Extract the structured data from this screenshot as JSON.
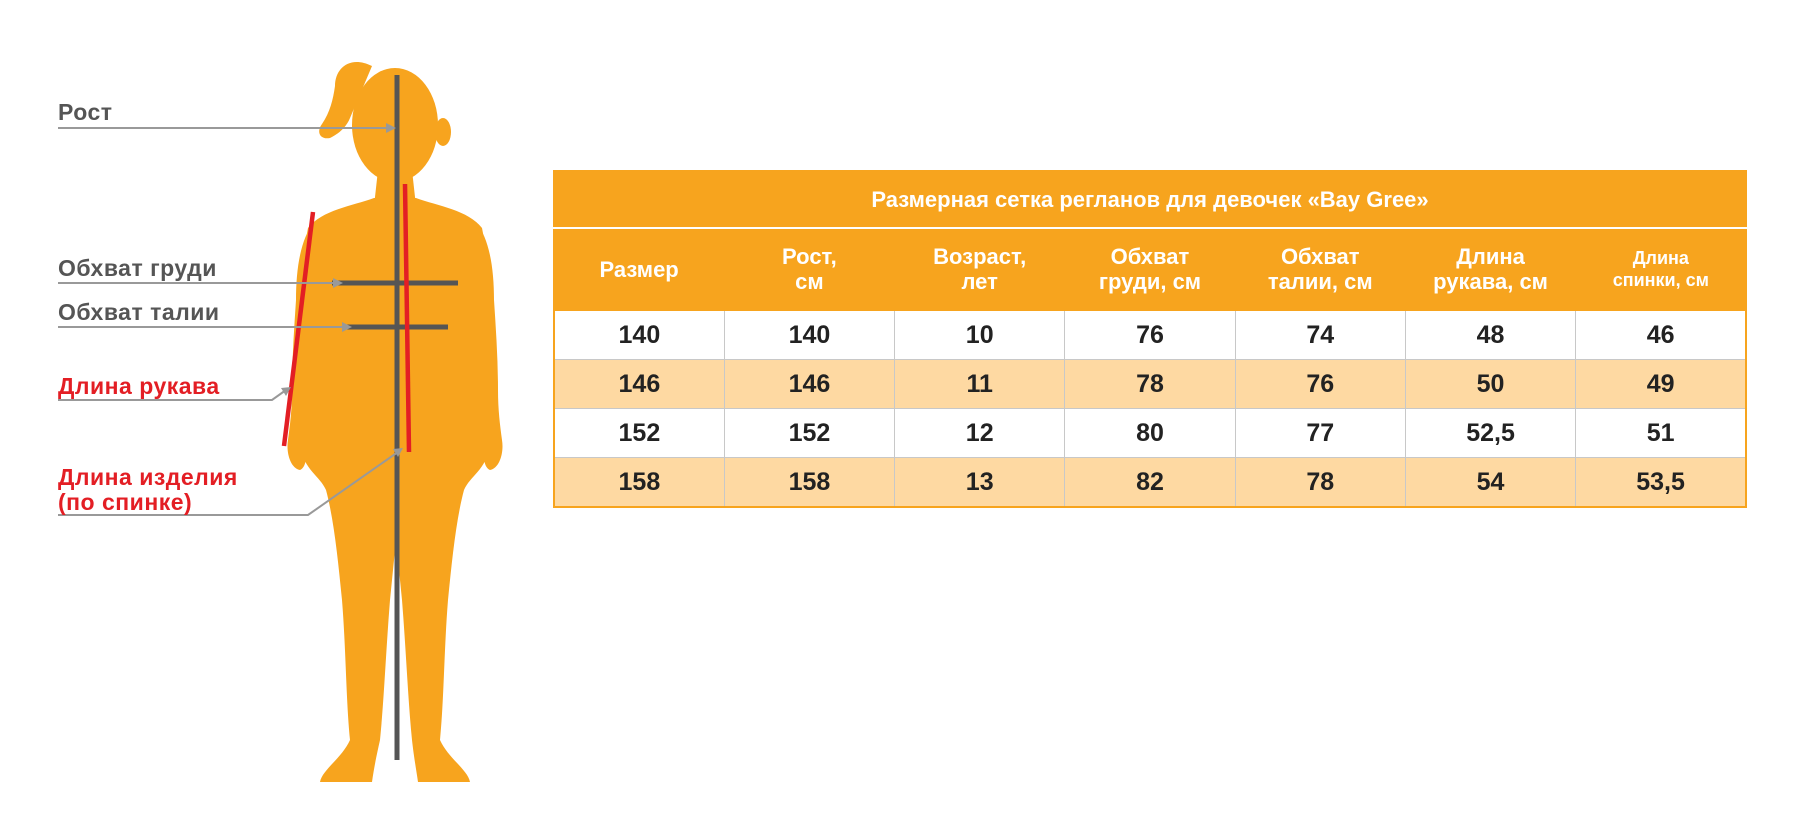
{
  "figure": {
    "labels": {
      "height": "Рост",
      "chest": "Обхват груди",
      "waist": "Обхват талии",
      "sleeve": "Длина рукава",
      "back_length_line1": "Длина изделия",
      "back_length_line2": "(по спинке)"
    },
    "colors": {
      "silhouette": "#f7a41e",
      "measure_line": "#555555",
      "highlight": "#e31e24"
    }
  },
  "table": {
    "title": "Размерная сетка регланов для девочек «Bay Gree»",
    "columns": [
      {
        "line1": "Размер",
        "line2": ""
      },
      {
        "line1": "Рост,",
        "line2": "см"
      },
      {
        "line1": "Возраст,",
        "line2": "лет"
      },
      {
        "line1": "Обхват",
        "line2": "груди, см"
      },
      {
        "line1": "Обхват",
        "line2": "талии, см"
      },
      {
        "line1": "Длина",
        "line2": "рукава, см"
      },
      {
        "line1": "Длина",
        "line2": "спинки, см"
      }
    ],
    "rows": [
      [
        "140",
        "140",
        "10",
        "76",
        "74",
        "48",
        "46"
      ],
      [
        "146",
        "146",
        "11",
        "78",
        "76",
        "50",
        "49"
      ],
      [
        "152",
        "152",
        "12",
        "80",
        "77",
        "52,5",
        "51"
      ],
      [
        "158",
        "158",
        "13",
        "82",
        "78",
        "54",
        "53,5"
      ]
    ],
    "colors": {
      "header": "#f7a41e",
      "row_alt": "#fed9a2"
    }
  }
}
